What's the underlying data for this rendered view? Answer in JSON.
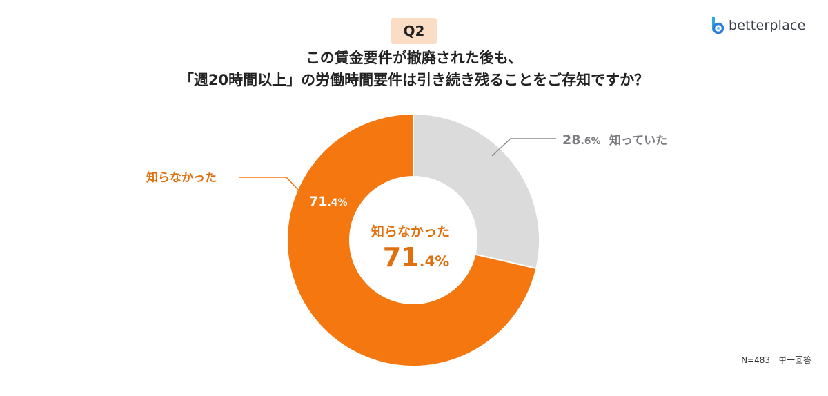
{
  "badge": "Q2",
  "title_line1": "この賃金要件が撤廃された後も、",
  "title_line2": "「週20時間以上」の労働時間要件は引き続き残ることをご存知ですか？",
  "logo": {
    "text": "betterplace",
    "icon": "betterplace-logo-icon"
  },
  "colors": {
    "orange": "#f5770f",
    "gray": "#dcdbdc",
    "gray_text": "#7b7b80"
  },
  "chart_data": {
    "type": "pie",
    "donut": true,
    "slices": [
      {
        "label": "知っていた",
        "value": 28.6,
        "value_int": "28",
        "value_dec": ".6%",
        "color": "#dcdbdc",
        "label_color": "#7b7b80"
      },
      {
        "label": "知らなかった",
        "value": 71.4,
        "value_int": "71",
        "value_dec": ".4%",
        "color": "#f5770f",
        "label_color": "#e0700e"
      }
    ],
    "center": {
      "label": "知らなかった",
      "value_int": "71",
      "value_dec": ".4%"
    }
  },
  "footnote": "N=483　単一回答"
}
